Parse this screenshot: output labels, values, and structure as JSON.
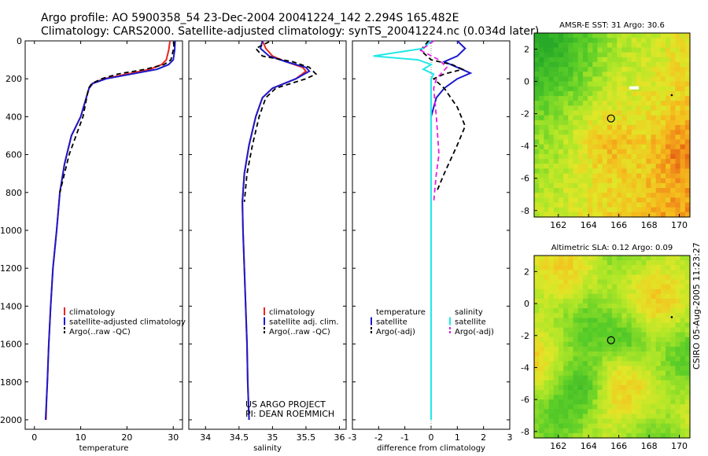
{
  "header": {
    "line1": "Argo profile: AO 5900358_54 23-Dec-2004 20041224_142 2.294S 165.482E",
    "line2": "Climatology: CARS2000. Satellite-adjusted climatology: synTS_20041224.nc (0.034d later)"
  },
  "stamp": "CSIRO 05-Aug-2005 11:23:27",
  "colors": {
    "red": "#e8261e",
    "blue": "#1a1acc",
    "black": "#000000",
    "cyan": "#22e8e8",
    "magenta": "#e020e0"
  },
  "chart_data": [
    {
      "type": "line",
      "id": "temperature",
      "xlabel": "temperature",
      "ylabel": "",
      "xlim": [
        -2,
        32
      ],
      "ylim": [
        2050,
        0
      ],
      "xticks": [
        0,
        10,
        20,
        30
      ],
      "yticks": [
        0,
        200,
        400,
        600,
        800,
        1000,
        1200,
        1400,
        1600,
        1800,
        2000
      ],
      "legend": [
        "climatology",
        "satellite-adjusted climatology",
        "Argo(..raw -QC)"
      ],
      "series": [
        {
          "name": "climatology",
          "color": "red",
          "dash": false,
          "x": [
            29.3,
            29.0,
            28.5,
            27.5,
            25.0,
            20.0,
            15.0,
            12.5,
            11.8,
            10.0,
            8.0,
            6.5,
            5.5,
            4.8,
            4.0,
            3.5,
            3.1,
            2.8,
            2.6,
            2.5
          ],
          "y": [
            0,
            50,
            100,
            125,
            150,
            175,
            200,
            225,
            250,
            400,
            500,
            650,
            800,
            1000,
            1200,
            1400,
            1600,
            1800,
            1900,
            2000
          ]
        },
        {
          "name": "satellite-adjusted climatology",
          "color": "blue",
          "dash": false,
          "x": [
            30.4,
            30.3,
            30.0,
            29.0,
            26.5,
            21.0,
            15.5,
            12.6,
            11.8,
            10.0,
            8.0,
            6.5,
            5.5,
            4.8,
            4.0,
            3.5,
            3.1,
            2.8,
            2.6,
            2.4
          ],
          "y": [
            0,
            50,
            100,
            125,
            150,
            175,
            200,
            225,
            250,
            400,
            500,
            650,
            800,
            1000,
            1200,
            1400,
            1600,
            1800,
            1900,
            2000
          ]
        },
        {
          "name": "Argo(..raw -QC)",
          "color": "black",
          "dash": true,
          "x": [
            30.2,
            30.0,
            29.5,
            28.0,
            24.0,
            18.0,
            14.5,
            12.4,
            11.7,
            10.5,
            9.0,
            7.5,
            6.5,
            5.5
          ],
          "y": [
            5,
            50,
            100,
            125,
            150,
            175,
            200,
            225,
            250,
            400,
            500,
            600,
            700,
            800
          ]
        }
      ]
    },
    {
      "type": "line",
      "id": "salinity",
      "xlabel": "salinity",
      "xlim": [
        33.75,
        36.1
      ],
      "ylim": [
        2050,
        0
      ],
      "xticks": [
        34,
        34.5,
        35,
        35.5,
        36
      ],
      "yticks": [
        0,
        200,
        400,
        600,
        800,
        1000,
        1200,
        1400,
        1600,
        1800,
        2000
      ],
      "legend": [
        "climatology",
        "satellite adj. clim.",
        "Argo(..raw -QC)"
      ],
      "series": [
        {
          "name": "climatology",
          "color": "red",
          "dash": false,
          "x": [
            34.85,
            34.9,
            35.0,
            35.2,
            35.45,
            35.5,
            35.35,
            35.0,
            34.85,
            34.75,
            34.65,
            34.58,
            34.55,
            34.56,
            34.58,
            34.6,
            34.62,
            34.63,
            34.65
          ],
          "y": [
            0,
            40,
            80,
            110,
            140,
            160,
            200,
            250,
            300,
            400,
            550,
            700,
            850,
            1000,
            1200,
            1400,
            1600,
            1800,
            2000
          ]
        },
        {
          "name": "satellite adj. clim.",
          "color": "blue",
          "dash": false,
          "x": [
            34.85,
            34.82,
            34.95,
            35.2,
            35.5,
            35.55,
            35.35,
            35.0,
            34.85,
            34.75,
            34.65,
            34.58,
            34.55,
            34.56,
            34.58,
            34.6,
            34.62,
            34.63,
            34.65
          ],
          "y": [
            0,
            40,
            80,
            110,
            140,
            160,
            200,
            250,
            300,
            400,
            550,
            700,
            850,
            1000,
            1200,
            1400,
            1600,
            1800,
            2000
          ]
        },
        {
          "name": "Argo(..raw -QC)",
          "color": "black",
          "dash": true,
          "x": [
            34.95,
            34.75,
            34.85,
            35.3,
            35.55,
            35.65,
            35.5,
            35.05,
            34.9,
            34.8,
            34.7,
            34.62,
            34.58
          ],
          "y": [
            5,
            40,
            80,
            110,
            140,
            175,
            200,
            250,
            300,
            400,
            550,
            700,
            850
          ]
        }
      ],
      "annotations": [
        "US ARGO PROJECT",
        "PI: DEAN ROEMMICH"
      ]
    },
    {
      "type": "line",
      "id": "difference",
      "xlabel": "difference from climatology",
      "xlim": [
        -3,
        3
      ],
      "ylim": [
        2050,
        0
      ],
      "xticks": [
        -3,
        -2,
        -1,
        0,
        1,
        2,
        3
      ],
      "yticks": [
        0,
        200,
        400,
        600,
        800,
        1000,
        1200,
        1400,
        1600,
        1800,
        2000
      ],
      "legend": [
        "temperature",
        "satellite",
        "Argo(-adj)",
        "salinity",
        "satellite",
        "Argo(-adj)"
      ],
      "series": [
        {
          "name": "temperature satellite",
          "color": "blue",
          "dash": false,
          "x": [
            1.0,
            1.3,
            1.0,
            0.5,
            1.0,
            1.5,
            1.0,
            0.5,
            0.2,
            0.0,
            0.0,
            0.0,
            0.0,
            0.0,
            0.0
          ],
          "y": [
            0,
            40,
            80,
            110,
            140,
            170,
            200,
            250,
            300,
            400,
            600,
            800,
            1000,
            1500,
            2000
          ]
        },
        {
          "name": "temperature Argo(-adj)",
          "color": "black",
          "dash": true,
          "x": [
            -0.1,
            -0.4,
            0.0,
            0.8,
            1.2,
            0.5,
            0.1,
            0.5,
            1.0,
            1.3,
            1.0,
            0.5,
            0.2
          ],
          "y": [
            0,
            50,
            100,
            125,
            150,
            175,
            200,
            250,
            350,
            450,
            550,
            700,
            800
          ]
        },
        {
          "name": "salinity satellite",
          "color": "cyan",
          "dash": false,
          "x": [
            0.0,
            -0.3,
            -2.2,
            -0.5,
            0.0,
            -0.3,
            0.1,
            0.0,
            0.0,
            0.0,
            0.0,
            0.0,
            0.0,
            0.0
          ],
          "y": [
            0,
            40,
            80,
            100,
            125,
            150,
            175,
            200,
            300,
            400,
            800,
            1200,
            1600,
            2000
          ]
        },
        {
          "name": "salinity Argo(-adj)",
          "color": "magenta",
          "dash": true,
          "x": [
            0.1,
            -0.4,
            0.3,
            0.6,
            0.2,
            0.1,
            0.2,
            0.3,
            0.2,
            0.1
          ],
          "y": [
            0,
            50,
            100,
            140,
            200,
            250,
            400,
            600,
            700,
            850
          ]
        }
      ]
    },
    {
      "type": "heatmap",
      "id": "sst",
      "title": "AMSR-E SST: 31 Argo: 30.6",
      "xlim": [
        160.4,
        170.7
      ],
      "ylim": [
        -8.4,
        3.0
      ],
      "xticks": [
        162,
        164,
        166,
        168,
        170
      ],
      "yticks": [
        2,
        0,
        -2,
        -4,
        -6,
        -8
      ],
      "marker": {
        "lon": 165.482,
        "lat": -2.294
      }
    },
    {
      "type": "heatmap",
      "id": "sla",
      "title": "Altimetric SLA: 0.12 Argo: 0.09",
      "xlim": [
        160.4,
        170.7
      ],
      "ylim": [
        -8.4,
        3.0
      ],
      "xticks": [
        162,
        164,
        166,
        168,
        170
      ],
      "yticks": [
        2,
        0,
        -2,
        -4,
        -6,
        -8
      ],
      "marker": {
        "lon": 165.482,
        "lat": -2.294
      }
    }
  ]
}
